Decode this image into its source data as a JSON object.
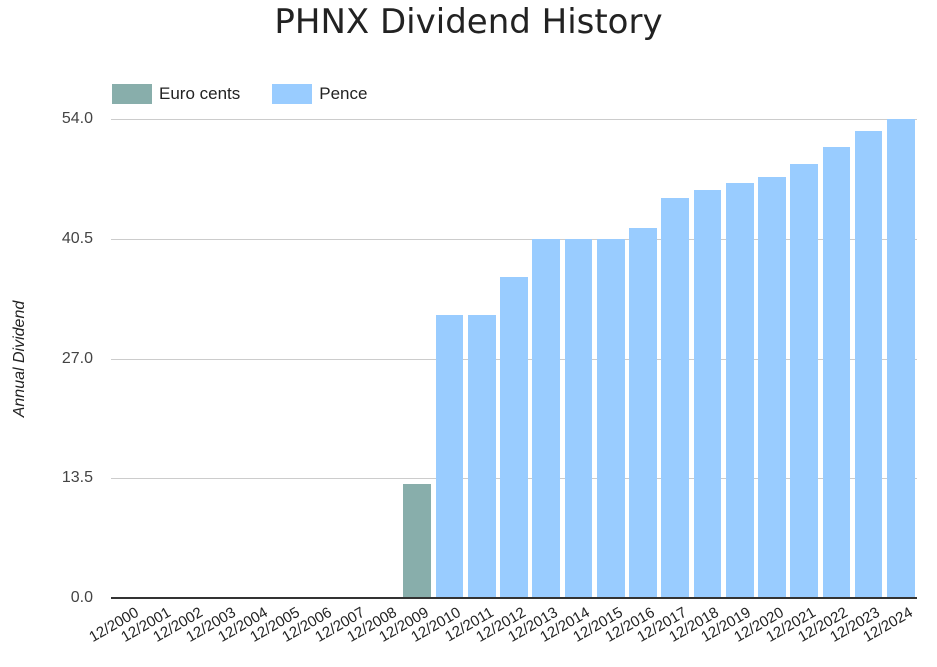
{
  "chart_data": {
    "type": "bar",
    "title": "PHNX Dividend History",
    "xlabel": "",
    "ylabel": "Annual Dividend",
    "ylim": [
      0,
      54
    ],
    "yticks": [
      "0.0",
      "13.5",
      "27.0",
      "40.5",
      "54.0"
    ],
    "grid": true,
    "legend_position": "top-left",
    "categories": [
      "12/2000",
      "12/2001",
      "12/2002",
      "12/2003",
      "12/2004",
      "12/2005",
      "12/2006",
      "12/2007",
      "12/2008",
      "12/2009",
      "12/2010",
      "12/2011",
      "12/2012",
      "12/2013",
      "12/2014",
      "12/2015",
      "12/2016",
      "12/2017",
      "12/2018",
      "12/2019",
      "12/2020",
      "12/2021",
      "12/2022",
      "12/2023",
      "12/2024"
    ],
    "series": [
      {
        "name": "Euro cents",
        "color": "#88aeab",
        "values": [
          0,
          0,
          0,
          0,
          0,
          0,
          0,
          0,
          0,
          12.9,
          0,
          0,
          0,
          0,
          0,
          0,
          0,
          0,
          0,
          0,
          0,
          0,
          0,
          0,
          0
        ]
      },
      {
        "name": "Pence",
        "color": "#99ccff",
        "values": [
          0,
          0,
          0,
          0,
          0,
          0,
          0,
          0,
          0,
          0,
          31.9,
          31.9,
          36.2,
          40.5,
          40.5,
          40.5,
          41.7,
          45.1,
          46.0,
          46.8,
          47.5,
          48.9,
          50.8,
          52.7,
          54.0
        ]
      }
    ]
  }
}
